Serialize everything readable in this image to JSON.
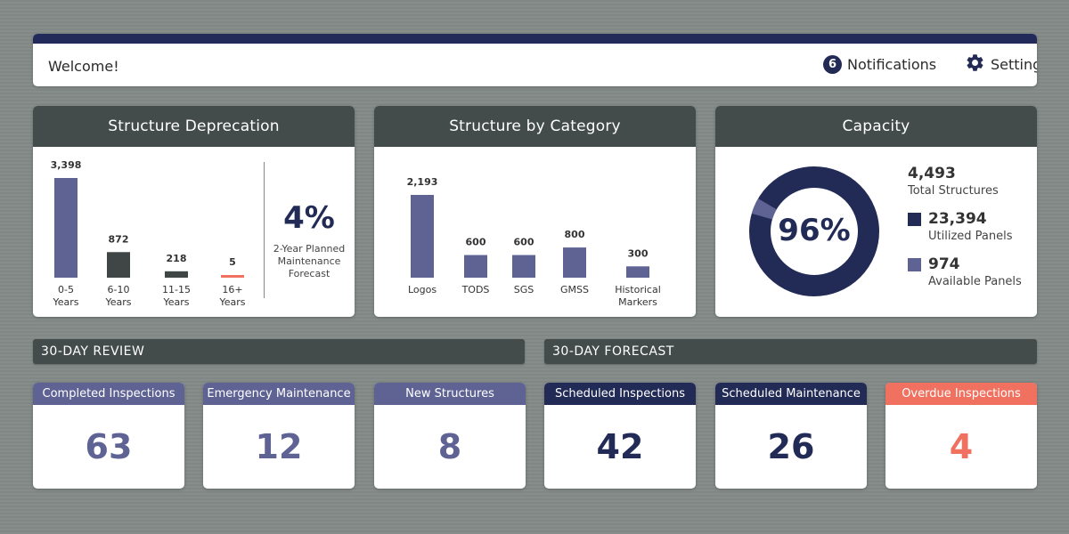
{
  "header": {
    "welcome": "Welcome!",
    "notifications_count": "6",
    "notifications_label": "Notifications",
    "settings_label": "Settings",
    "icons": {
      "settings": "gear-icon"
    }
  },
  "colors": {
    "navy": "#222a56",
    "periwinkle": "#5f6394",
    "slate": "#434c4a",
    "coral": "#f0715f"
  },
  "deprecation": {
    "title": "Structure Deprecation",
    "percent": "4%",
    "caption_line1": "2-Year Planned",
    "caption_line2": "Maintenance",
    "caption_line3": "Forecast"
  },
  "category": {
    "title": "Structure by Category"
  },
  "capacity": {
    "title": "Capacity",
    "center": "96%",
    "total": "4,493",
    "total_label": "Total Structures",
    "utilized": "23,394",
    "utilized_label": "Utilized Panels",
    "available": "974",
    "available_label": "Available Panels"
  },
  "chart_data": [
    {
      "type": "bar",
      "title": "Structure Deprecation",
      "categories": [
        [
          "0-5",
          "Years"
        ],
        [
          "6-10",
          "Years"
        ],
        [
          "11-15",
          "Years"
        ],
        [
          "16+",
          "Years"
        ]
      ],
      "values": [
        3398,
        872,
        218,
        5
      ],
      "value_labels": [
        "3,398",
        "872",
        "218",
        "5"
      ],
      "colors": [
        "#5f6394",
        "#3f4645",
        "#3f4645",
        "#f0715f"
      ]
    },
    {
      "type": "bar",
      "title": "Structure by Category",
      "categories": [
        [
          "Logos"
        ],
        [
          "TODS"
        ],
        [
          "SGS"
        ],
        [
          "GMSS"
        ],
        [
          "Historical",
          "Markers"
        ]
      ],
      "values": [
        2193,
        600,
        600,
        800,
        300
      ],
      "value_labels": [
        "2,193",
        "600",
        "600",
        "800",
        "300"
      ],
      "colors": [
        "#5f6394",
        "#5f6394",
        "#5f6394",
        "#5f6394",
        "#5f6394"
      ]
    },
    {
      "type": "pie",
      "title": "Capacity",
      "center_label": "96%",
      "slices": [
        {
          "name": "Utilized Panels",
          "value": 23394,
          "color": "#222a56"
        },
        {
          "name": "Available Panels",
          "value": 974,
          "color": "#5f6394"
        }
      ]
    }
  ],
  "review": {
    "title": "30-DAY REVIEW",
    "tiles": [
      {
        "label": "Completed Inspections",
        "value": "63"
      },
      {
        "label": "Emergency Maintenance",
        "value": "12"
      },
      {
        "label": "New Structures",
        "value": "8"
      }
    ]
  },
  "forecast": {
    "title": "30-DAY FORECAST",
    "tiles": [
      {
        "label": "Scheduled Inspections",
        "value": "42"
      },
      {
        "label": "Scheduled Maintenance",
        "value": "26"
      },
      {
        "label": "Overdue Inspections",
        "value": "4"
      }
    ]
  }
}
